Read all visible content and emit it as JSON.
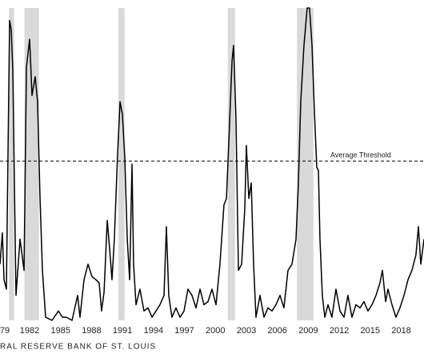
{
  "chart_data": {
    "type": "line",
    "source": "RAL RESERVE BANK OF ST. LOUIS",
    "threshold": {
      "label": "Average Threshold",
      "value": 51
    },
    "recessions": [
      [
        1980.0,
        1980.5
      ],
      [
        1981.5,
        1982.9
      ],
      [
        1990.6,
        1991.2
      ],
      [
        2001.2,
        2001.9
      ],
      [
        2007.9,
        2009.5
      ]
    ],
    "recession_color": "#d9d9d9",
    "xlim": [
      1979.13,
      2020.21
    ],
    "ylim": [
      0,
      100
    ],
    "xticks": [
      {
        "value": 1979,
        "label": "79"
      },
      1982,
      1985,
      1988,
      1991,
      1994,
      1997,
      2000,
      2003,
      2006,
      2009,
      2012,
      2015,
      2018
    ],
    "series": [
      {
        "color": "#000000",
        "x": [
          1979.13,
          1979.36,
          1979.52,
          1979.75,
          1980.06,
          1980.22,
          1980.37,
          1980.68,
          1981.07,
          1981.46,
          1981.69,
          1982.0,
          1982.23,
          1982.54,
          1982.77,
          1983.01,
          1983.24,
          1983.55,
          1984.17,
          1984.79,
          1985.18,
          1985.56,
          1986.11,
          1986.65,
          1986.88,
          1987.27,
          1987.66,
          1988.04,
          1988.43,
          1988.74,
          1988.97,
          1989.21,
          1989.52,
          1989.75,
          1989.98,
          1990.21,
          1990.52,
          1990.76,
          1990.99,
          1991.22,
          1991.46,
          1991.69,
          1991.92,
          1992.07,
          1992.31,
          1992.69,
          1993.08,
          1993.47,
          1993.86,
          1994.24,
          1994.63,
          1995.02,
          1995.25,
          1995.48,
          1995.79,
          1996.18,
          1996.57,
          1996.96,
          1997.34,
          1997.73,
          1998.12,
          1998.51,
          1998.89,
          1999.28,
          1999.67,
          2000.06,
          2000.44,
          2000.83,
          2001.07,
          2001.3,
          2001.61,
          2001.76,
          2001.99,
          2002.23,
          2002.54,
          2002.85,
          2003.0,
          2003.24,
          2003.47,
          2003.7,
          2003.93,
          2004.32,
          2004.71,
          2005.09,
          2005.48,
          2005.87,
          2006.26,
          2006.64,
          2007.03,
          2007.42,
          2007.81,
          2008.04,
          2008.27,
          2008.58,
          2008.89,
          2009.12,
          2009.36,
          2009.59,
          2009.82,
          2009.98,
          2010.13,
          2010.36,
          2010.6,
          2010.91,
          2011.29,
          2011.68,
          2012.07,
          2012.46,
          2012.84,
          2013.23,
          2013.62,
          2014.01,
          2014.39,
          2014.78,
          2015.17,
          2015.56,
          2015.94,
          2016.18,
          2016.49,
          2016.72,
          2017.11,
          2017.49,
          2017.88,
          2018.27,
          2018.66,
          2019.04,
          2019.43,
          2019.67,
          2019.9,
          2020.21
        ],
        "values": [
          18,
          28,
          13,
          10,
          96,
          93,
          80,
          8,
          26,
          16,
          81,
          90,
          72,
          78,
          70,
          39,
          16,
          1,
          0,
          3,
          1,
          1,
          0,
          8,
          1,
          13,
          18,
          14,
          13,
          12,
          3,
          9,
          32,
          23,
          13,
          26,
          53,
          70,
          66,
          52,
          26,
          13,
          50,
          18,
          5,
          10,
          3,
          4,
          1,
          3,
          5,
          8,
          30,
          8,
          1,
          4,
          1,
          3,
          10,
          8,
          4,
          10,
          5,
          6,
          10,
          5,
          18,
          37,
          39,
          57,
          83,
          88,
          65,
          16,
          18,
          36,
          56,
          39,
          44,
          18,
          1,
          8,
          1,
          4,
          3,
          5,
          8,
          4,
          16,
          18,
          26,
          44,
          70,
          88,
          100,
          100,
          88,
          67,
          49,
          48,
          26,
          8,
          1,
          5,
          1,
          10,
          3,
          1,
          8,
          1,
          5,
          4,
          6,
          3,
          5,
          8,
          12,
          16,
          6,
          10,
          5,
          1,
          4,
          8,
          13,
          16,
          21,
          30,
          18,
          26
        ]
      }
    ]
  }
}
